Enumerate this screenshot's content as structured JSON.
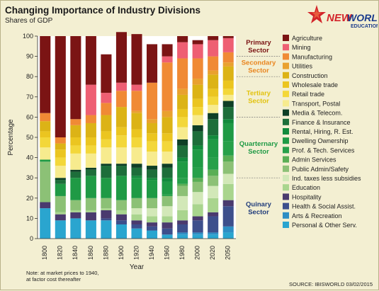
{
  "header": {
    "title": "Changing Importance of Industry Divisions",
    "subtitle": "Shares of GDP"
  },
  "logo": {
    "line1": "NEW WORLD",
    "line2": "EDUCATION"
  },
  "footer": {
    "note_line1": "Note: at market prices to 1940,",
    "note_line2": "at factor cost thereafter",
    "source": "SOURCE: IBISWORLD 03/02/2015"
  },
  "chart_data": {
    "type": "bar",
    "stacked": true,
    "xlabel": "Year",
    "ylabel": "Percentage",
    "ylim": [
      0,
      100
    ],
    "yticks": [
      0,
      10,
      20,
      30,
      40,
      50,
      60,
      70,
      80,
      90,
      100
    ],
    "grid": "horizontal dotted lines at sector boundaries",
    "legend_position": "right",
    "categories": [
      "1800",
      "1820",
      "1840",
      "1860",
      "1880",
      "1900",
      "1920",
      "1940",
      "1960",
      "1980",
      "2000",
      "2020",
      "2050"
    ],
    "series": [
      {
        "name": "Personal & Other Serv.",
        "color": "#2aa5cf",
        "values": [
          15,
          9,
          10,
          9,
          9,
          7,
          5,
          4,
          2,
          2,
          2,
          2,
          3
        ]
      },
      {
        "name": "Arts & Recreation",
        "color": "#2e8ec4",
        "values": [
          0,
          0,
          0,
          0,
          0,
          0,
          0,
          0,
          0,
          1,
          1,
          1,
          3
        ]
      },
      {
        "name": "Health & Social Assist.",
        "color": "#3d4f8c",
        "values": [
          0,
          0,
          0,
          0,
          1,
          2,
          2,
          2,
          3,
          4,
          6,
          8,
          10
        ]
      },
      {
        "name": "Hospitality",
        "color": "#4a3a6e",
        "values": [
          3,
          3,
          3,
          4,
          4,
          3,
          2,
          2,
          3,
          2,
          2,
          2,
          3
        ]
      },
      {
        "name": "Education",
        "color": "#a9d58e",
        "values": [
          0,
          1,
          1,
          1,
          1,
          2,
          3,
          3,
          3,
          5,
          6,
          7,
          8
        ]
      },
      {
        "name": "Ind. taxes less subsidies",
        "color": "#d2e8b8",
        "values": [
          0,
          0,
          0,
          0,
          0,
          0,
          3,
          4,
          5,
          7,
          6,
          6,
          5
        ]
      },
      {
        "name": "Public Admin/Safety",
        "color": "#8cc176",
        "values": [
          20,
          8,
          5,
          6,
          5,
          5,
          5,
          5,
          5,
          5,
          5,
          5,
          6
        ]
      },
      {
        "name": "Admin Services",
        "color": "#5aae55",
        "values": [
          0,
          0,
          0,
          0,
          0,
          0,
          0,
          0,
          0,
          1,
          2,
          3,
          3
        ]
      },
      {
        "name": "Prof. & Tech. Services",
        "color": "#27a04a",
        "values": [
          0,
          0,
          0,
          0,
          0,
          0,
          0,
          0,
          1,
          3,
          5,
          6,
          7
        ]
      },
      {
        "name": "Dwelling Ownership",
        "color": "#1f9a45",
        "values": [
          1,
          6,
          11,
          11,
          10,
          12,
          10,
          9,
          6,
          8,
          9,
          9,
          9
        ]
      },
      {
        "name": "Rental, Hiring, R. Est.",
        "color": "#128a3c",
        "values": [
          0,
          0,
          0,
          0,
          0,
          0,
          1,
          1,
          2,
          2,
          2,
          2,
          2
        ]
      },
      {
        "name": "Finance & Insurance",
        "color": "#1d6e3a",
        "values": [
          0,
          2,
          3,
          3,
          6,
          5,
          4,
          4,
          5,
          6,
          7,
          8,
          6
        ]
      },
      {
        "name": "Media & Telecom.",
        "color": "#0e3f26",
        "values": [
          0,
          1,
          1,
          1,
          1,
          1,
          2,
          2,
          2,
          3,
          3,
          3,
          3
        ]
      },
      {
        "name": "Transport, Postal",
        "color": "#f7eb8e",
        "values": [
          6,
          6,
          8,
          7,
          8,
          8,
          8,
          7,
          6,
          6,
          5,
          4,
          3
        ]
      },
      {
        "name": "Retail trade",
        "color": "#f3d73a",
        "values": [
          5,
          4,
          4,
          4,
          4,
          6,
          5,
          5,
          5,
          5,
          4,
          4,
          3
        ]
      },
      {
        "name": "Wholesale trade",
        "color": "#ebc520",
        "values": [
          3,
          4,
          4,
          4,
          4,
          4,
          4,
          4,
          4,
          4,
          4,
          4,
          4
        ]
      },
      {
        "name": "Construction",
        "color": "#dcb316",
        "values": [
          5,
          3,
          6,
          7,
          8,
          10,
          8,
          5,
          8,
          7,
          7,
          7,
          7
        ]
      },
      {
        "name": "Utilities",
        "color": "#e9a12f",
        "values": [
          0,
          0,
          0,
          0,
          0,
          0,
          1,
          2,
          3,
          3,
          3,
          2,
          2
        ]
      },
      {
        "name": "Manufacturing",
        "color": "#f08a35",
        "values": [
          4,
          3,
          3,
          4,
          6,
          8,
          10,
          18,
          24,
          15,
          10,
          7,
          5
        ]
      },
      {
        "name": "Mining",
        "color": "#ee5f73",
        "values": [
          0,
          0,
          0,
          15,
          5,
          4,
          3,
          0,
          3,
          8,
          7,
          8,
          7
        ]
      },
      {
        "name": "Agriculture",
        "color": "#7b1414",
        "values": [
          38,
          50,
          41,
          24,
          19,
          25,
          25,
          19,
          6,
          3,
          2,
          2,
          1
        ]
      }
    ],
    "sector_labels": [
      {
        "name": "Primary\nSector",
        "color": "#7b1414",
        "from": 90,
        "to": 100
      },
      {
        "name": "Secondary\nSector",
        "color": "#e9851f",
        "from": 80,
        "to": 90
      },
      {
        "name": "Tertiary\nSector",
        "color": "#e2c20c",
        "from": 60,
        "to": 80
      },
      {
        "name": "Quarternary\nSector",
        "color": "#1f9a45",
        "from": 30,
        "to": 60
      },
      {
        "name": "Quinary\nSector",
        "color": "#1f3b7a",
        "from": 0,
        "to": 30
      }
    ]
  }
}
